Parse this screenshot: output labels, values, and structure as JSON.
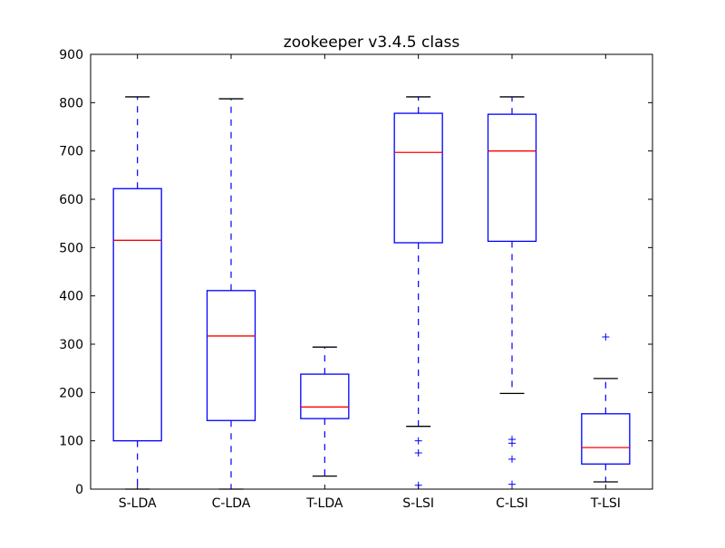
{
  "chart_data": {
    "type": "box",
    "title": "zookeeper v3.4.5 class",
    "xlabel": "",
    "ylabel": "",
    "ylim": [
      0,
      900
    ],
    "yticks": [
      0,
      100,
      200,
      300,
      400,
      500,
      600,
      700,
      800,
      900
    ],
    "grid": false,
    "colors": {
      "box": "#0000ff",
      "median": "#ff0000",
      "whisker": "#0000ff",
      "cap": "#000000",
      "outlier": "#0000ff"
    },
    "boxes": [
      {
        "label": "S-LDA",
        "whislo": 0,
        "q1": 100,
        "median": 515,
        "q3": 622,
        "whishi": 812,
        "fliers": []
      },
      {
        "label": "C-LDA",
        "whislo": 0,
        "q1": 142,
        "median": 317,
        "q3": 411,
        "whishi": 808,
        "fliers": []
      },
      {
        "label": "T-LDA",
        "whislo": 27,
        "q1": 146,
        "median": 170,
        "q3": 238,
        "whishi": 294,
        "fliers": []
      },
      {
        "label": "S-LSI",
        "whislo": 130,
        "q1": 510,
        "median": 697,
        "q3": 778,
        "whishi": 812,
        "fliers": [
          100,
          75,
          8
        ]
      },
      {
        "label": "C-LSI",
        "whislo": 198,
        "q1": 513,
        "median": 700,
        "q3": 776,
        "whishi": 812,
        "fliers": [
          103,
          95,
          62,
          10
        ]
      },
      {
        "label": "T-LSI",
        "whislo": 15,
        "q1": 52,
        "median": 86,
        "q3": 156,
        "whishi": 229,
        "fliers": [
          315
        ]
      }
    ]
  }
}
